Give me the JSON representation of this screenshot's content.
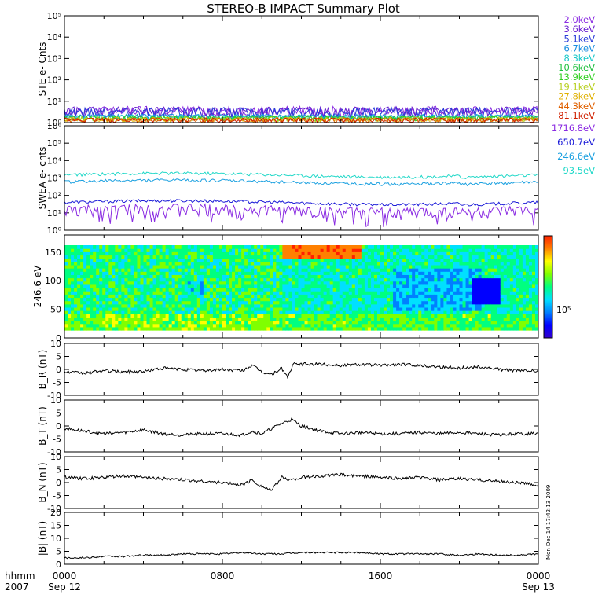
{
  "title": "STEREO-B IMPACT Summary Plot",
  "colors": {
    "ste": [
      "#8a2be2",
      "#6a1fd0",
      "#2a3cd8",
      "#1a8fe0",
      "#18c8c8",
      "#20c040",
      "#30d020",
      "#b8d020",
      "#e0b000",
      "#e06000",
      "#d02000"
    ],
    "swea": [
      "#8a2be2",
      "#1a1ad8",
      "#1aa0e0",
      "#20d8c8"
    ],
    "line": "#000000",
    "colorbar": [
      "#3300cc",
      "#0000ff",
      "#0080ff",
      "#00e0ff",
      "#00ff80",
      "#80ff00",
      "#ffff00",
      "#ff8000",
      "#ff2000"
    ]
  },
  "chart_data": [
    {
      "type": "line",
      "ylabel": "STE e- Cnts",
      "yscale": "log",
      "ylim": [
        1,
        100000
      ],
      "yticks": [
        "10⁰",
        "10¹",
        "10²",
        "10³",
        "10⁴",
        "10⁵"
      ],
      "legend_placement": "right",
      "series": [
        {
          "name": "2.0keV",
          "level": 1.8
        },
        {
          "name": "3.6keV",
          "level": 1.7
        },
        {
          "name": "5.1keV",
          "level": 1.6
        },
        {
          "name": "6.7keV",
          "level": 1.5
        },
        {
          "name": "8.3keV",
          "level": 1.4
        },
        {
          "name": "10.6keV",
          "level": 1.3
        },
        {
          "name": "13.9keV",
          "level": 1.2
        },
        {
          "name": "19.1keV",
          "level": 1.1
        },
        {
          "name": "27.8keV",
          "level": 1.05
        },
        {
          "name": "44.3keV",
          "level": 1.0
        },
        {
          "name": "81.1keV",
          "level": 1.0
        }
      ]
    },
    {
      "type": "line",
      "ylabel": "SWEA e- cnts",
      "yscale": "log",
      "ylim": [
        1,
        1000000
      ],
      "yticks": [
        "10⁰",
        "10¹",
        "10²",
        "10³",
        "10⁴",
        "10⁵",
        "10⁶"
      ],
      "legend_placement": "right",
      "series": [
        {
          "name": "1716.8eV",
          "level": 4
        },
        {
          "name": "650.7eV",
          "level": 40
        },
        {
          "name": "246.6eV",
          "level": 600
        },
        {
          "name": "93.5eV",
          "level": 1500
        }
      ]
    },
    {
      "type": "heatmap",
      "ylabel": "246.6 eV",
      "ylim": [
        0,
        180
      ],
      "yticks": [
        0,
        50,
        100,
        150
      ],
      "colorbar_label": "10⁵"
    },
    {
      "type": "line",
      "ylabel": "B_R (nT)",
      "ylim": [
        -10,
        10
      ],
      "yticks": [
        -10,
        -5,
        0,
        5,
        10
      ],
      "x": [
        0,
        1,
        2,
        3,
        4,
        5,
        6,
        7,
        8,
        9,
        9.5,
        10,
        10.5,
        11,
        11.3,
        11.6,
        12,
        13,
        14,
        15,
        16,
        17,
        18,
        19,
        20,
        21,
        22,
        23,
        24
      ],
      "values": [
        -1,
        -1.5,
        -0.5,
        -1,
        -0.8,
        0.5,
        0,
        -0.5,
        0,
        -0.5,
        1.5,
        -1,
        -2,
        0.5,
        -3,
        2,
        2,
        2,
        1.5,
        2,
        1.5,
        2,
        1.5,
        1,
        0.5,
        1,
        0,
        -0.5,
        -0.5
      ]
    },
    {
      "type": "line",
      "ylabel": "B_T (nT)",
      "ylim": [
        -10,
        10
      ],
      "yticks": [
        -10,
        -5,
        0,
        5,
        10
      ],
      "x": [
        0,
        1,
        2,
        3,
        4,
        5,
        6,
        7,
        8,
        9,
        9.5,
        10,
        11,
        11.5,
        12,
        13,
        14,
        15,
        16,
        17,
        18,
        19,
        20,
        21,
        22,
        23,
        24
      ],
      "values": [
        -1,
        -2,
        -3,
        -2.5,
        -1.5,
        -3,
        -3.5,
        -3,
        -3,
        -3.5,
        -2,
        -3,
        1,
        2.5,
        0,
        -2,
        -3,
        -2.5,
        -3,
        -3,
        -2.5,
        -3,
        -2.5,
        -3,
        -3.5,
        -3,
        -3
      ]
    },
    {
      "type": "line",
      "ylabel": "B_N (nT)",
      "ylim": [
        -10,
        10
      ],
      "yticks": [
        -10,
        -5,
        0,
        5,
        10
      ],
      "x": [
        0,
        1,
        2,
        3,
        4,
        5,
        6,
        7,
        8,
        9,
        9.5,
        10,
        10.5,
        11,
        11.5,
        12,
        13,
        14,
        15,
        16,
        17,
        18,
        19,
        20,
        21,
        22,
        23,
        24
      ],
      "values": [
        2,
        1.5,
        2,
        2.5,
        2,
        1.5,
        1,
        0.5,
        0,
        -1,
        1,
        -1.5,
        -3,
        2,
        1,
        2,
        2.5,
        3,
        2.5,
        2,
        1.5,
        2,
        1,
        1.5,
        1,
        0.5,
        0,
        -1
      ]
    },
    {
      "type": "line",
      "ylabel": "|B| (nT)",
      "ylim": [
        0,
        20
      ],
      "yticks": [
        0,
        5,
        10,
        15,
        20
      ],
      "x": [
        0,
        1,
        2,
        3,
        4,
        5,
        6,
        7,
        8,
        9,
        10,
        11,
        12,
        13,
        14,
        15,
        16,
        17,
        18,
        19,
        20,
        21,
        22,
        23,
        24
      ],
      "values": [
        2.5,
        2.5,
        3,
        3,
        3.5,
        3.5,
        4,
        4,
        4,
        4.5,
        4,
        4,
        4.5,
        4.5,
        4.5,
        4.5,
        4,
        4,
        4,
        4,
        3.5,
        4,
        3.5,
        3.5,
        4
      ]
    }
  ],
  "xaxis": {
    "tick_hours": [
      0,
      8,
      16,
      24
    ],
    "tick_labels": [
      "0000",
      "0800",
      "1600",
      "0000"
    ],
    "date_labels": [
      "Sep 12",
      "Sep 13"
    ],
    "row1_label": "hhmm",
    "row2_label": "2007"
  },
  "timestamp": "Mon Dec 14 17:42:13 2009"
}
